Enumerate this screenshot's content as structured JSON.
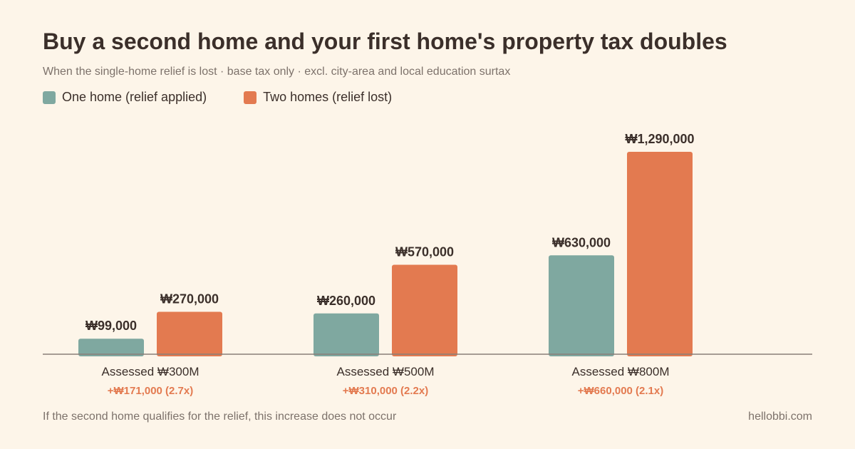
{
  "header": {
    "title": "Buy a second home and your first home's property tax doubles",
    "subtitle": "When the single-home relief is lost · base tax only · excl. city-area and local education surtax"
  },
  "legend": [
    {
      "label": "One home (relief applied)",
      "color": "#7fa8a0"
    },
    {
      "label": "Two homes (relief lost)",
      "color": "#e37a50"
    }
  ],
  "chart_data": {
    "type": "bar",
    "categories": [
      "Assessed ₩300M",
      "Assessed ₩500M",
      "Assessed ₩800M"
    ],
    "series": [
      {
        "name": "One home (relief applied)",
        "values": [
          99000,
          260000,
          630000
        ],
        "labels": [
          "₩99,000",
          "₩260,000",
          "₩630,000"
        ],
        "color": "#7fa8a0"
      },
      {
        "name": "Two homes (relief lost)",
        "values": [
          270000,
          570000,
          1290000
        ],
        "labels": [
          "₩270,000",
          "₩570,000",
          "₩1,290,000"
        ],
        "color": "#e37a50"
      }
    ],
    "annotations": [
      "+₩171,000 (2.7x)",
      "+₩310,000 (2.2x)",
      "+₩660,000 (2.1x)"
    ],
    "ylim": [
      0,
      1290000
    ],
    "grid": false,
    "legend_position": "top-left"
  },
  "footer": {
    "note": "If the second home qualifies for the relief, this increase does not occur",
    "site": "hellobbi.com"
  }
}
